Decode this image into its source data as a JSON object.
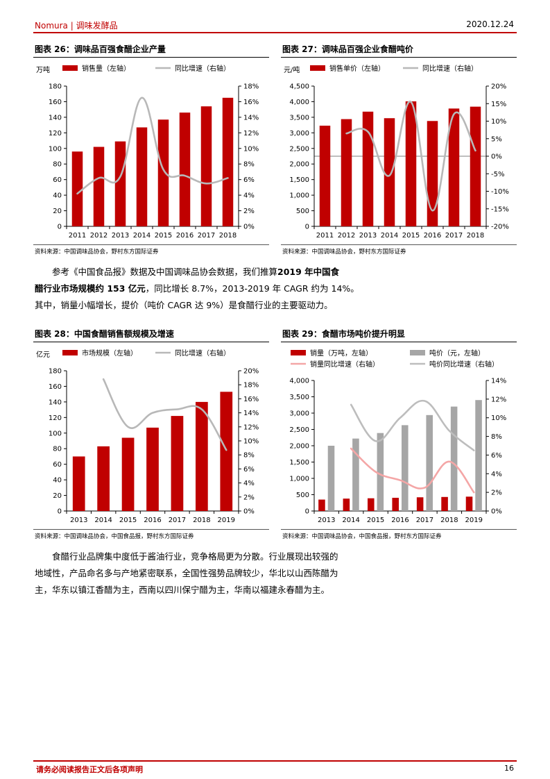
{
  "header": {
    "brand": "Nomura",
    "section": "调味发酵品",
    "date": "2020.12.24"
  },
  "footer": {
    "disclaimer": "请务必阅读报告正文后各项声明",
    "page_number": "16"
  },
  "charts": [
    {
      "title": "图表 26：调味品百强食醋企业产量",
      "source": "资料来源：中国调味品协会，野村东方国际证券",
      "unit_left": "万吨",
      "legend": [
        "销售量（左轴）",
        "同比增速（右轴）"
      ],
      "colors": {
        "bar": "#c00000",
        "line": "#b8b8b8"
      },
      "chart_data": {
        "type": "bar",
        "categories": [
          "2011",
          "2012",
          "2013",
          "2014",
          "2015",
          "2016",
          "2017",
          "2018"
        ],
        "series": [
          {
            "name": "销售量（左轴）",
            "type": "bar",
            "axis": "left",
            "values": [
              96,
              102,
              109,
              127,
              137,
              146,
              154,
              165
            ]
          },
          {
            "name": "同比增速（右轴）",
            "type": "line",
            "axis": "right",
            "values": [
              4.2,
              6.2,
              6.4,
              16.5,
              7.3,
              6.5,
              5.5,
              6.2
            ]
          }
        ],
        "yleft": {
          "min": 0,
          "max": 180,
          "step": 20,
          "suffix": ""
        },
        "yright": {
          "min": 0,
          "max": 18,
          "step": 2,
          "suffix": "%"
        }
      }
    },
    {
      "title": "图表 27：调味品百强企业食醋吨价",
      "source": "资料来源：中国调味品协会，野村东方国际证券",
      "unit_left": "元/吨",
      "legend": [
        "销售单价（左轴）",
        "同比增速（右轴）"
      ],
      "colors": {
        "bar": "#c00000",
        "line": "#b8b8b8"
      },
      "chart_data": {
        "type": "bar",
        "categories": [
          "2011",
          "2012",
          "2013",
          "2014",
          "2015",
          "2016",
          "2017",
          "2018"
        ],
        "series": [
          {
            "name": "销售单价（左轴）",
            "type": "bar",
            "axis": "left",
            "values": [
              3230,
              3440,
              3680,
              3470,
              4010,
              3380,
              3780,
              3840
            ]
          },
          {
            "name": "同比增速（右轴）",
            "type": "line",
            "axis": "right",
            "values": [
              null,
              6.5,
              7.0,
              -5.5,
              15.5,
              -15.5,
              12.0,
              1.6
            ],
            "start": 1
          }
        ],
        "yleft": {
          "min": 0,
          "max": 4500,
          "step": 500,
          "suffix": "",
          "thousands": true
        },
        "yright": {
          "min": -20,
          "max": 20,
          "step": 5,
          "suffix": "%"
        }
      }
    },
    {
      "title": "图表 28：中国食醋销售额规模及增速",
      "source": "资料来源：中国调味品协会，中国食品报，野村东方国际证券",
      "unit_left": "亿元",
      "legend": [
        "市场规模（左轴）",
        "同比增速（右轴）"
      ],
      "colors": {
        "bar": "#c00000",
        "line": "#b8b8b8"
      },
      "chart_data": {
        "type": "bar",
        "categories": [
          "2013",
          "2014",
          "2015",
          "2016",
          "2017",
          "2018",
          "2019"
        ],
        "series": [
          {
            "name": "市场规模（左轴）",
            "type": "bar",
            "axis": "left",
            "values": [
              70,
              83,
              94,
              107,
              122,
              140,
              153
            ]
          },
          {
            "name": "同比增速（右轴）",
            "type": "line",
            "axis": "right",
            "values": [
              null,
              18.8,
              12.0,
              14.0,
              14.5,
              14.5,
              8.7
            ]
          }
        ],
        "yleft": {
          "min": 0,
          "max": 180,
          "step": 20,
          "suffix": ""
        },
        "yright": {
          "min": 0,
          "max": 20,
          "step": 2,
          "suffix": "%"
        }
      }
    },
    {
      "title": "图表 29：食醋市场吨价提升明显",
      "source": "资料来源：中国调味品协会，中国食品报，野村东方国际证券",
      "unit_left": "",
      "legend": [
        "销量（万吨，左轴）",
        "吨价（元，左轴）",
        "销量同比增速（右轴）",
        "吨价同比增速（右轴）"
      ],
      "colors": {
        "bar": "#c00000",
        "bar2": "#a6a6a6",
        "line": "#f4a6a6",
        "line2": "#bdbdbd"
      },
      "chart_data": {
        "type": "bar",
        "categories": [
          "2013",
          "2014",
          "2015",
          "2016",
          "2017",
          "2018",
          "2019"
        ],
        "series": [
          {
            "name": "销量（万吨，左轴）",
            "type": "bar",
            "axis": "left",
            "values": [
              350,
              380,
              390,
              405,
              420,
              430,
              440
            ]
          },
          {
            "name": "吨价（元，左轴）",
            "type": "bar",
            "axis": "left",
            "values": [
              2000,
              2220,
              2390,
              2630,
              2940,
              3200,
              3400
            ]
          },
          {
            "name": "销量同比增速（右轴）",
            "type": "line",
            "axis": "right",
            "values": [
              null,
              6.7,
              4.2,
              3.3,
              2.5,
              5.3,
              2.0
            ]
          },
          {
            "name": "吨价同比增速（右轴）",
            "type": "line",
            "axis": "right",
            "values": [
              null,
              11.4,
              7.5,
              10.0,
              11.8,
              8.6,
              6.5
            ]
          }
        ],
        "yleft": {
          "min": 0,
          "max": 4000,
          "step": 500,
          "suffix": "",
          "thousands": true
        },
        "yright": {
          "min": 0,
          "max": 14,
          "step": 2,
          "suffix": "%"
        }
      }
    }
  ],
  "paragraph1": {
    "line1_a": "参考《中国食品报》数据及中国调味品协会数据，我们推算",
    "line1_b": "2019 年中国食",
    "line2_a": "醋行业市场规模约 153 亿元",
    "line2_b": "，同比增长 8.7%，2013-2019 年 CAGR 约为 14%。",
    "line3": "其中，销量小幅增长，提价（吨价 CAGR 达 9%）是食醋行业的主要驱动力。"
  },
  "paragraph2": {
    "line1": "食醋行业品牌集中度低于酱油行业，竞争格局更为分散。行业展现出较强的",
    "line2": "地域性，产品命名多与产地紧密联系，全国性强势品牌较少，华北以山西陈醋为",
    "line3": "主，华东以镇江香醋为主，西南以四川保宁醋为主，华南以福建永春醋为主。"
  }
}
